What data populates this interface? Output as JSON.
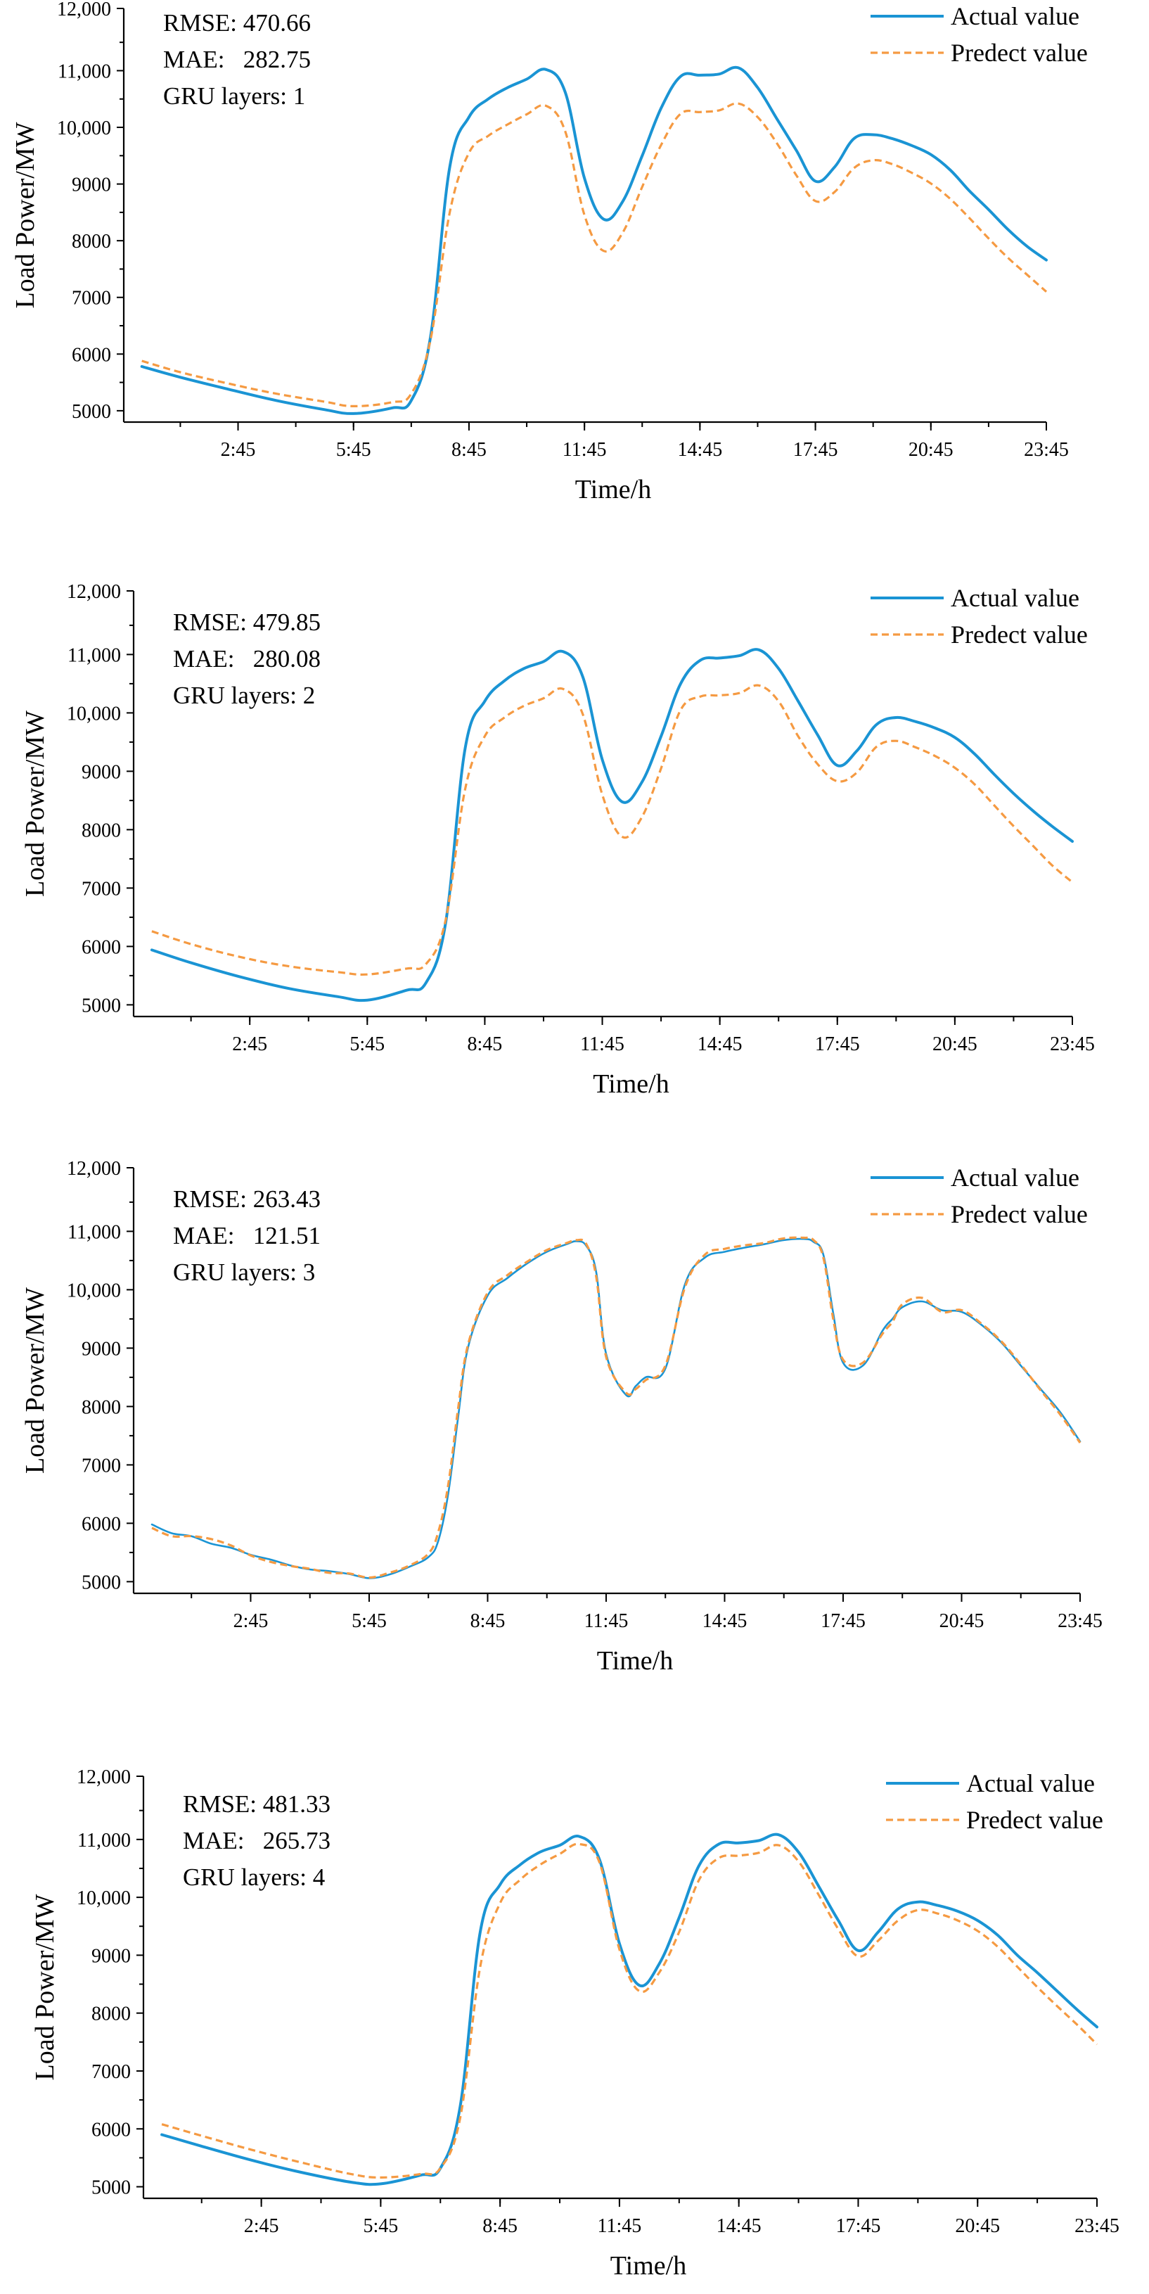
{
  "colors": {
    "actual": "#1a94d4",
    "predict": "#f59a42",
    "axis": "#000000"
  },
  "chart_data": [
    {
      "type": "line",
      "title": "",
      "xlabel": "Time/h",
      "ylabel": "Load Power/MW",
      "xlim": [
        0,
        95
      ],
      "ylim": [
        4800,
        11800
      ],
      "yticks": [
        5000,
        6000,
        7000,
        8000,
        9000,
        10000,
        11000,
        12000
      ],
      "ytick_labels": [
        "5000",
        "6000",
        "7000",
        "8000",
        "9000",
        "10,000",
        "11,000",
        "12,000"
      ],
      "xticks": [
        11,
        23,
        35,
        47,
        59,
        71,
        83,
        95
      ],
      "xtick_labels": [
        "2:45",
        "5:45",
        "8:45",
        "11:45",
        "14:45",
        "17:45",
        "20:45",
        "23:45"
      ],
      "stats": {
        "rmse": "RMSE: 470.66",
        "mae": "MAE:   282.75",
        "layers": "GRU layers: 1"
      },
      "series": [
        {
          "name": "Actual value",
          "x": [
            1,
            5,
            10,
            15,
            20,
            23,
            27,
            29,
            31,
            33,
            35,
            37,
            39,
            41,
            43,
            45,
            47,
            49,
            51,
            53,
            55,
            57,
            59,
            61,
            63,
            65,
            67,
            69,
            71,
            73,
            75,
            77,
            79,
            81,
            83,
            85,
            87,
            89,
            91,
            93,
            95
          ],
          "values": [
            5780,
            5590,
            5380,
            5180,
            5020,
            4950,
            5050,
            5180,
            6300,
            9300,
            10180,
            10500,
            10700,
            10850,
            11020,
            10620,
            9100,
            8380,
            8700,
            9500,
            10350,
            10900,
            10920,
            10940,
            11050,
            10700,
            10150,
            9600,
            9050,
            9300,
            9800,
            9870,
            9800,
            9680,
            9520,
            9250,
            8880,
            8550,
            8200,
            7900,
            7660
          ]
        },
        {
          "name": "Predect value",
          "x": [
            1,
            5,
            10,
            15,
            20,
            23,
            27,
            29,
            31,
            33,
            35,
            37,
            39,
            41,
            43,
            45,
            47,
            49,
            51,
            53,
            55,
            57,
            59,
            61,
            63,
            65,
            67,
            69,
            71,
            73,
            75,
            77,
            79,
            81,
            83,
            85,
            87,
            89,
            91,
            93,
            95
          ],
          "values": [
            5880,
            5680,
            5480,
            5300,
            5160,
            5080,
            5150,
            5300,
            6250,
            8500,
            9550,
            9850,
            10050,
            10230,
            10380,
            9930,
            8450,
            7820,
            8150,
            8950,
            9700,
            10240,
            10270,
            10300,
            10420,
            10180,
            9720,
            9160,
            8700,
            8860,
            9280,
            9420,
            9350,
            9200,
            9010,
            8740,
            8400,
            8040,
            7700,
            7400,
            7100
          ]
        }
      ]
    },
    {
      "type": "line",
      "title": "",
      "xlabel": "Time/h",
      "ylabel": "Load Power/MW",
      "xlim": [
        0,
        95
      ],
      "ylim": [
        4800,
        11800
      ],
      "yticks": [
        5000,
        6000,
        7000,
        8000,
        9000,
        10000,
        11000,
        12000
      ],
      "ytick_labels": [
        "5000",
        "6000",
        "7000",
        "8000",
        "9000",
        "10,000",
        "11,000",
        "12,000"
      ],
      "xticks": [
        11,
        23,
        35,
        47,
        59,
        71,
        83,
        95
      ],
      "xtick_labels": [
        "2:45",
        "5:45",
        "8:45",
        "11:45",
        "14:45",
        "17:45",
        "20:45",
        "23:45"
      ],
      "stats": {
        "rmse": "RMSE: 479.85",
        "mae": "MAE:   280.08",
        "layers": "GRU layers: 2"
      },
      "series": [
        {
          "name": "Actual value",
          "x": [
            1,
            5,
            10,
            15,
            20,
            23,
            27,
            29,
            31,
            33,
            35,
            37,
            39,
            41,
            43,
            45,
            47,
            49,
            51,
            53,
            55,
            57,
            59,
            61,
            63,
            65,
            67,
            69,
            71,
            73,
            75,
            77,
            79,
            81,
            83,
            85,
            87,
            89,
            91,
            93,
            95
          ],
          "values": [
            5940,
            5720,
            5480,
            5280,
            5140,
            5080,
            5250,
            5380,
            6400,
            9400,
            10200,
            10550,
            10760,
            10880,
            11050,
            10620,
            9200,
            8480,
            8800,
            9600,
            10500,
            10900,
            10940,
            10980,
            11080,
            10760,
            10200,
            9620,
            9100,
            9350,
            9800,
            9920,
            9850,
            9740,
            9580,
            9300,
            8950,
            8620,
            8320,
            8050,
            7800
          ]
        },
        {
          "name": "Predect value",
          "x": [
            1,
            5,
            10,
            15,
            20,
            23,
            27,
            29,
            31,
            33,
            35,
            37,
            39,
            41,
            43,
            45,
            47,
            49,
            51,
            53,
            55,
            57,
            59,
            61,
            63,
            65,
            67,
            69,
            71,
            73,
            75,
            77,
            79,
            81,
            83,
            85,
            87,
            89,
            91,
            93,
            95
          ],
          "values": [
            6260,
            6040,
            5820,
            5660,
            5560,
            5520,
            5620,
            5700,
            6450,
            8700,
            9600,
            9920,
            10120,
            10250,
            10410,
            9980,
            8600,
            7880,
            8200,
            9050,
            10050,
            10280,
            10300,
            10340,
            10470,
            10200,
            9600,
            9120,
            8830,
            8980,
            9420,
            9520,
            9410,
            9260,
            9060,
            8780,
            8420,
            8060,
            7720,
            7380,
            7100
          ]
        }
      ]
    },
    {
      "type": "line",
      "title": "",
      "xlabel": "Time/h",
      "ylabel": "Load Power/MW",
      "xlim": [
        0,
        95
      ],
      "ylim": [
        4800,
        11800
      ],
      "yticks": [
        5000,
        6000,
        7000,
        8000,
        9000,
        10000,
        11000,
        12000
      ],
      "ytick_labels": [
        "5000",
        "6000",
        "7000",
        "8000",
        "9000",
        "10,000",
        "11,000",
        "12,000"
      ],
      "xticks": [
        11,
        23,
        35,
        47,
        59,
        71,
        83,
        95
      ],
      "xtick_labels": [
        "2:45",
        "5:45",
        "8:45",
        "11:45",
        "14:45",
        "17:45",
        "20:45",
        "23:45"
      ],
      "stats": {
        "rmse": "RMSE: 263.43",
        "mae": "MAE:   121.51",
        "layers": "GRU layers: 3"
      },
      "series": [
        {
          "name": "Actual value",
          "x": [
            1,
            3,
            5,
            7,
            9,
            11,
            13,
            15,
            17,
            19,
            21,
            23,
            25,
            27,
            29,
            30,
            31,
            32,
            33,
            35,
            37,
            39,
            41,
            43,
            44,
            45,
            46,
            47,
            49,
            50,
            51,
            53,
            55,
            57,
            59,
            61,
            63,
            65,
            67,
            68,
            69,
            70,
            71,
            73,
            75,
            76,
            77,
            79,
            81,
            83,
            85,
            87,
            89,
            91,
            93,
            95
          ],
          "values": [
            5980,
            5830,
            5780,
            5650,
            5580,
            5460,
            5380,
            5280,
            5210,
            5180,
            5130,
            5060,
            5120,
            5250,
            5420,
            5700,
            6500,
            7800,
            9000,
            9900,
            10200,
            10450,
            10650,
            10780,
            10830,
            10750,
            10300,
            8900,
            8200,
            8350,
            8500,
            8650,
            10100,
            10550,
            10650,
            10720,
            10780,
            10850,
            10870,
            10820,
            10600,
            9600,
            8750,
            8700,
            9300,
            9500,
            9700,
            9800,
            9650,
            9620,
            9400,
            9100,
            8700,
            8300,
            7900,
            7400
          ]
        },
        {
          "name": "Predect value",
          "x": [
            1,
            3,
            5,
            7,
            9,
            11,
            13,
            15,
            17,
            19,
            21,
            23,
            25,
            27,
            29,
            30,
            31,
            32,
            33,
            35,
            37,
            39,
            41,
            43,
            44,
            45,
            46,
            47,
            49,
            50,
            51,
            53,
            55,
            57,
            59,
            61,
            63,
            65,
            67,
            68,
            69,
            70,
            71,
            73,
            75,
            76,
            77,
            79,
            81,
            83,
            85,
            87,
            89,
            91,
            93,
            95
          ],
          "values": [
            5920,
            5780,
            5780,
            5730,
            5620,
            5450,
            5340,
            5270,
            5220,
            5150,
            5140,
            5070,
            5150,
            5270,
            5480,
            5850,
            6650,
            7950,
            9050,
            9950,
            10250,
            10480,
            10680,
            10800,
            10850,
            10780,
            10220,
            8850,
            8240,
            8300,
            8450,
            8700,
            10050,
            10600,
            10700,
            10760,
            10800,
            10880,
            10890,
            10850,
            10550,
            9500,
            8800,
            8750,
            9250,
            9450,
            9750,
            9860,
            9620,
            9650,
            9420,
            9120,
            8720,
            8280,
            7860,
            7380
          ]
        }
      ]
    },
    {
      "type": "line",
      "title": "",
      "xlabel": "Time/h",
      "ylabel": "Load Power/MW",
      "xlim": [
        0,
        95
      ],
      "ylim": [
        4800,
        11800
      ],
      "yticks": [
        5000,
        6000,
        7000,
        8000,
        9000,
        10000,
        11000,
        12000
      ],
      "ytick_labels": [
        "5000",
        "6000",
        "7000",
        "8000",
        "9000",
        "10,000",
        "11,000",
        "12,000"
      ],
      "xticks": [
        11,
        23,
        35,
        47,
        59,
        71,
        83,
        95
      ],
      "xtick_labels": [
        "2:45",
        "5:45",
        "8:45",
        "11:45",
        "14:45",
        "17:45",
        "20:45",
        "23:45"
      ],
      "stats": {
        "rmse": "RMSE: 481.33",
        "mae": "MAE:   265.73",
        "layers": "GRU layers: 4"
      },
      "series": [
        {
          "name": "Actual value",
          "x": [
            1,
            5,
            10,
            15,
            20,
            23,
            27,
            29,
            31,
            33,
            35,
            37,
            39,
            41,
            43,
            45,
            47,
            49,
            51,
            53,
            55,
            57,
            59,
            61,
            63,
            65,
            67,
            69,
            71,
            73,
            75,
            77,
            79,
            81,
            83,
            85,
            87,
            89,
            91,
            93,
            95
          ],
          "values": [
            5900,
            5700,
            5460,
            5250,
            5080,
            5050,
            5200,
            5320,
            6400,
            9400,
            10220,
            10560,
            10780,
            10900,
            11050,
            10650,
            9200,
            8480,
            8850,
            9650,
            10550,
            10920,
            10940,
            10980,
            11080,
            10780,
            10200,
            9600,
            9080,
            9400,
            9800,
            9920,
            9860,
            9760,
            9600,
            9350,
            9000,
            8700,
            8380,
            8060,
            7760
          ]
        },
        {
          "name": "Predect value",
          "x": [
            1,
            5,
            10,
            15,
            20,
            23,
            27,
            29,
            31,
            33,
            35,
            37,
            39,
            41,
            43,
            45,
            47,
            49,
            51,
            53,
            55,
            57,
            59,
            61,
            63,
            65,
            67,
            69,
            71,
            73,
            75,
            77,
            79,
            81,
            83,
            85,
            87,
            89,
            91,
            93,
            95
          ],
          "values": [
            6080,
            5880,
            5640,
            5420,
            5220,
            5160,
            5220,
            5320,
            6200,
            8800,
            9900,
            10300,
            10560,
            10750,
            10920,
            10600,
            9100,
            8380,
            8700,
            9400,
            10300,
            10680,
            10720,
            10770,
            10900,
            10620,
            10050,
            9450,
            8980,
            9250,
            9600,
            9780,
            9720,
            9600,
            9420,
            9150,
            8800,
            8450,
            8120,
            7800,
            7460
          ]
        }
      ]
    }
  ]
}
